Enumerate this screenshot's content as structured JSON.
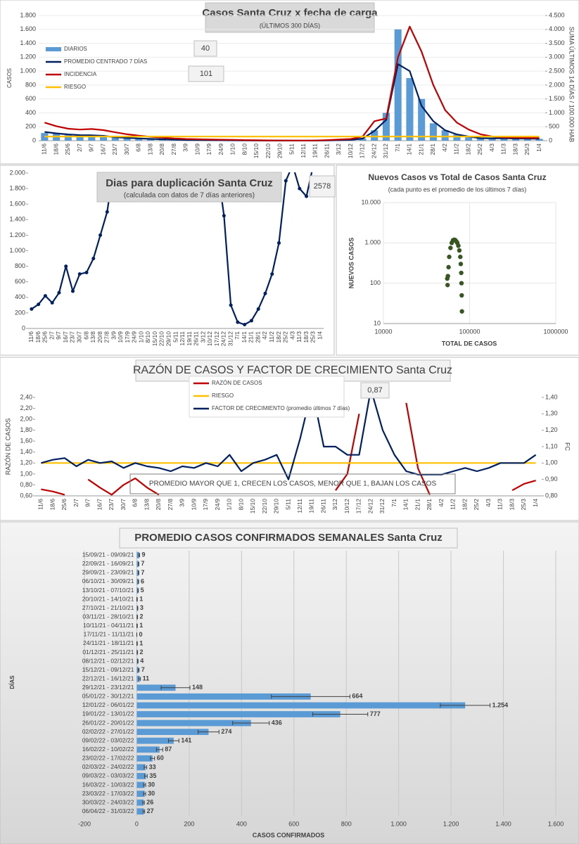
{
  "chart_data": [
    {
      "type": "line",
      "title": "Casos Santa Cruz x fecha de carga",
      "subtitle": "(ÚLTIMOS 300 DÍAS)",
      "y_label": "CASOS",
      "y2_label": "SUMA  ÚLTIMOS 14 DÍAS / 100.000 HAB",
      "categories": [
        "11/6",
        "18/6",
        "25/6",
        "2/7",
        "9/7",
        "16/7",
        "23/7",
        "30/7",
        "6/8",
        "13/8",
        "20/8",
        "27/8",
        "3/9",
        "10/9",
        "17/9",
        "24/9",
        "1/10",
        "8/10",
        "15/10",
        "22/10",
        "29/10",
        "5/11",
        "12/11",
        "19/11",
        "26/11",
        "3/12",
        "10/12",
        "17/12",
        "24/12",
        "31/12",
        "7/1",
        "14/1",
        "21/1",
        "28/1",
        "4/2",
        "11/2",
        "18/2",
        "25/2",
        "4/3",
        "11/3",
        "18/3",
        "25/3",
        "1/4"
      ],
      "series": [
        {
          "name": "DIARIOS",
          "style": "bar",
          "color": "#5b9bd5",
          "values": [
            110,
            100,
            80,
            70,
            80,
            60,
            45,
            40,
            30,
            25,
            20,
            15,
            10,
            8,
            7,
            6,
            5,
            3,
            2,
            1,
            1,
            1,
            0,
            2,
            4,
            7,
            11,
            30,
            150,
            400,
            1600,
            900,
            600,
            250,
            150,
            90,
            60,
            35,
            33,
            35,
            30,
            30,
            26
          ]
        },
        {
          "name": "PROMEDIO CENTRADO 7 DÍAS",
          "color": "#002060",
          "values": [
            125,
            105,
            90,
            80,
            78,
            70,
            50,
            40,
            32,
            25,
            20,
            15,
            10,
            8,
            7,
            6,
            5,
            3,
            2,
            1,
            1,
            1,
            0,
            1,
            3,
            7,
            11,
            30,
            140,
            300,
            1100,
            1000,
            500,
            280,
            150,
            90,
            60,
            35,
            33,
            35,
            30,
            30,
            27
          ]
        },
        {
          "name": "INCIDENCIA",
          "color": "#c00000",
          "axis": "y2",
          "values": [
            650,
            520,
            430,
            400,
            420,
            380,
            300,
            230,
            180,
            140,
            110,
            80,
            60,
            50,
            40,
            35,
            30,
            20,
            15,
            10,
            8,
            6,
            5,
            8,
            20,
            40,
            60,
            150,
            700,
            800,
            3000,
            4100,
            3200,
            2000,
            1100,
            650,
            400,
            230,
            150,
            120,
            110,
            100,
            95
          ]
        },
        {
          "name": "RIESGO",
          "color": "#ffc000",
          "axis": "y2",
          "values": [
            150,
            150,
            150,
            150,
            150,
            150,
            150,
            150,
            150,
            150,
            150,
            150,
            150,
            150,
            150,
            150,
            150,
            150,
            150,
            150,
            150,
            150,
            150,
            150,
            150,
            150,
            150,
            150,
            150,
            150,
            150,
            150,
            150,
            150,
            150,
            150,
            150,
            150,
            150,
            150,
            150,
            150,
            150
          ]
        }
      ],
      "ylim": [
        0,
        1800
      ],
      "yticks": [
        0,
        200,
        400,
        600,
        800,
        {
          "value": 1000,
          "label": "1.000"
        },
        {
          "value": 1200,
          "label": "1.200"
        },
        {
          "value": 1400,
          "label": "1.400"
        },
        {
          "value": 1600,
          "label": "1.600"
        },
        {
          "value": 1800,
          "label": "1.800"
        }
      ],
      "y2lim": [
        0,
        4500
      ],
      "y2ticks": [
        0,
        500,
        {
          "value": 1000,
          "label": "1.000"
        },
        {
          "value": 1500,
          "label": "1.500"
        },
        {
          "value": 2000,
          "label": "2.000"
        },
        {
          "value": 2500,
          "label": "2.500"
        },
        {
          "value": 3000,
          "label": "3.000"
        },
        {
          "value": 3500,
          "label": "3.500"
        },
        {
          "value": 4000,
          "label": "4.000"
        },
        {
          "value": 4500,
          "label": "4.500"
        }
      ],
      "grid": true,
      "legend": "upper left",
      "annotations": [
        "40",
        "101"
      ]
    },
    {
      "type": "line",
      "title": "Dias para duplicación Santa Cruz",
      "subtitle": "(calculada con datos de 7 días anteriores)",
      "categories": [
        "11/6",
        "18/6",
        "25/6",
        "2/7",
        "9/7",
        "16/7",
        "23/7",
        "30/7",
        "6/8",
        "13/8",
        "20/8",
        "27/8",
        "3/9",
        "10/9",
        "17/9",
        "24/9",
        "1/10",
        "8/10",
        "15/10",
        "22/10",
        "29/10",
        "5/11",
        "12/11",
        "19/11",
        "26/11",
        "3/12",
        "10/12",
        "17/12",
        "24/12",
        "31/12",
        "7/1",
        "14/1",
        "21/1",
        "28/1",
        "4/2",
        "11/2",
        "18/2",
        "25/2",
        "4/3",
        "11/3",
        "18/3",
        "25/3",
        "1/4"
      ],
      "series": [
        {
          "color": "#002060",
          "markers": true,
          "values": [
            250,
            310,
            420,
            330,
            460,
            800,
            480,
            700,
            720,
            900,
            1200,
            1500,
            2100,
            null,
            null,
            null,
            null,
            null,
            null,
            null,
            null,
            null,
            null,
            null,
            null,
            null,
            null,
            2100,
            1450,
            300,
            80,
            50,
            100,
            250,
            450,
            700,
            1100,
            1900,
            2100,
            1800,
            1700,
            2100,
            null
          ]
        }
      ],
      "ylim": [
        0,
        2000
      ],
      "yticks": [
        0,
        200,
        400,
        600,
        800,
        {
          "value": 1000,
          "label": "1.000"
        },
        {
          "value": 1200,
          "label": "1.200"
        },
        {
          "value": 1400,
          "label": "1.400"
        },
        {
          "value": 1600,
          "label": "1.600"
        },
        {
          "value": 1800,
          "label": "1.800"
        },
        {
          "value": 2000,
          "label": "2.000"
        }
      ],
      "grid": false,
      "annotations": [
        "2578"
      ]
    },
    {
      "type": "scatter",
      "title": "Nuevos Casos vs Total de Casos Santa Cruz",
      "subtitle": "(cada punto es el promedio de los últimos 7 días)",
      "x_label": "TOTAL DE CASOS",
      "y_label": "NUEVOS CASOS",
      "color": "#375623",
      "x": [
        55000,
        55500,
        56000,
        57000,
        58000,
        60000,
        62000,
        64000,
        66000,
        68000,
        70000,
        72000,
        74000,
        76000,
        78000,
        79000,
        80000,
        80500,
        81000,
        81500
      ],
      "values": [
        130,
        90,
        150,
        250,
        450,
        750,
        1000,
        1150,
        1200,
        1180,
        1100,
        1000,
        850,
        650,
        450,
        300,
        180,
        100,
        50,
        20
      ],
      "xlim": [
        10000,
        1000000
      ],
      "xticks": [
        10000,
        100000,
        1000000
      ],
      "log_x": true,
      "ylim": [
        10,
        10000
      ],
      "yticks": [
        10,
        100,
        {
          "value": 1000,
          "label": "1.000"
        },
        {
          "value": 10000,
          "label": "10.000"
        }
      ],
      "log_y": true,
      "grid": true
    },
    {
      "type": "line",
      "title": "RAZÓN DE CASOS Y FACTOR DE CRECIMIENTO Santa Cruz",
      "y_label": "RAZÓN DE CASOS",
      "y2_label": "FC",
      "categories": [
        "11/6",
        "18/6",
        "25/6",
        "2/7",
        "9/7",
        "16/7",
        "23/7",
        "30/7",
        "6/8",
        "13/8",
        "20/8",
        "27/8",
        "3/9",
        "10/9",
        "17/9",
        "24/9",
        "1/10",
        "8/10",
        "15/10",
        "22/10",
        "29/10",
        "5/11",
        "12/11",
        "19/11",
        "26/11",
        "3/12",
        "10/12",
        "17/12",
        "24/12",
        "31/12",
        "7/1",
        "14/1",
        "21/1",
        "28/1",
        "4/2",
        "11/2",
        "18/2",
        "25/2",
        "4/3",
        "11/3",
        "18/3",
        "25/3",
        "1/4"
      ],
      "series": [
        {
          "name": "RAZÓN DE CASOS",
          "color": "#c00000",
          "values": [
            0.72,
            0.68,
            0.62,
            null,
            0.9,
            0.75,
            0.62,
            0.8,
            0.92,
            0.75,
            0.62,
            null,
            null,
            null,
            null,
            null,
            null,
            null,
            null,
            null,
            null,
            null,
            null,
            null,
            null,
            0.7,
            1.0,
            2.1,
            null,
            null,
            null,
            2.3,
            1.1,
            0.62,
            null,
            null,
            null,
            null,
            null,
            null,
            0.7,
            0.82,
            0.88
          ]
        },
        {
          "name": "RIESGO",
          "color": "#ffc000",
          "axis": "y2",
          "values": [
            1,
            1,
            1,
            1,
            1,
            1,
            1,
            1,
            1,
            1,
            1,
            1,
            1,
            1,
            1,
            1,
            1,
            1,
            1,
            1,
            1,
            1,
            1,
            1,
            1,
            1,
            1,
            1,
            1,
            1,
            1,
            1,
            1,
            1,
            1,
            1,
            1,
            1,
            1,
            1,
            1,
            1,
            1
          ]
        },
        {
          "name": "FACTOR DE CRECIMIENTO (promedio últimos 7 días)",
          "color": "#002060",
          "axis": "y2",
          "values": [
            1.0,
            1.02,
            1.03,
            0.98,
            1.02,
            1.0,
            1.01,
            0.97,
            1.0,
            0.98,
            0.97,
            0.95,
            0.98,
            0.97,
            1.0,
            0.98,
            1.05,
            0.95,
            1.0,
            1.02,
            1.05,
            0.9,
            1.15,
            1.45,
            1.1,
            1.1,
            1.05,
            1.05,
            1.45,
            1.2,
            1.05,
            0.95,
            0.93,
            0.93,
            0.93,
            0.95,
            0.97,
            0.95,
            0.97,
            1.0,
            1.0,
            1.0,
            1.05
          ]
        }
      ],
      "ylim": [
        0.6,
        2.4
      ],
      "yticks": [
        {
          "value": 0.6,
          "label": "0,60"
        },
        {
          "value": 0.8,
          "label": "0,80"
        },
        {
          "value": 1.0,
          "label": "1,00"
        },
        {
          "value": 1.2,
          "label": "1,20"
        },
        {
          "value": 1.4,
          "label": "1,40"
        },
        {
          "value": 1.6,
          "label": "1,60"
        },
        {
          "value": 1.8,
          "label": "1,80"
        },
        {
          "value": 2.0,
          "label": "2,00"
        },
        {
          "value": 2.2,
          "label": "2,20"
        },
        {
          "value": 2.4,
          "label": "2,40"
        }
      ],
      "y2lim": [
        0.8,
        1.4
      ],
      "y2ticks": [
        {
          "value": 0.8,
          "label": "0,80"
        },
        {
          "value": 0.9,
          "label": "0,90"
        },
        {
          "value": 1.0,
          "label": "1,00"
        },
        {
          "value": 1.1,
          "label": "1,10"
        },
        {
          "value": 1.2,
          "label": "1,20"
        },
        {
          "value": 1.3,
          "label": "1,30"
        },
        {
          "value": 1.4,
          "label": "1,40"
        }
      ],
      "grid": false,
      "legend": "upper center",
      "annotations": [
        "0,87",
        "PROMEDIO MAYOR QUE 1, CRECEN LOS CASOS, MENOR QUE 1, BAJAN LOS CASOS"
      ]
    },
    {
      "type": "hbar",
      "title": "PROMEDIO CASOS CONFIRMADOS SEMANALES Santa Cruz",
      "x_label": "CASOS CONFIRMADOS",
      "y_label": "DÍAS",
      "color": "#5b9bd5",
      "categories": [
        "15/09/21 - 09/09/21",
        "22/09/21 - 16/09/21",
        "29/09/21 - 23/09/21",
        "06/10/21 - 30/09/21",
        "13/10/21 - 07/10/21",
        "20/10/21 - 14/10/21",
        "27/10/21 - 21/10/21",
        "03/11/21 - 28/10/21",
        "10/11/21 - 04/11/21",
        "17/11/21 - 11/11/21",
        "24/11/21 - 18/11/21",
        "01/12/21 - 25/11/21",
        "08/12/21 - 02/12/21",
        "15/12/21 - 09/12/21",
        "22/12/21 - 16/12/21",
        "29/12/21 - 23/12/21",
        "05/01/22 - 30/12/21",
        "12/01/22 - 06/01/22",
        "19/01/22 - 13/01/22",
        "26/01/22 - 20/01/22",
        "02/02/22 - 27/01/22",
        "09/02/22 - 03/02/22",
        "16/02/22 - 10/02/22",
        "23/02/22 - 17/02/22",
        "02/03/22 - 24/02/22",
        "09/03/22 - 03/03/22",
        "16/03/22 - 10/03/22",
        "23/03/22 - 17/03/22",
        "30/03/22 - 24/03/22",
        "06/04/22 - 31/03/22"
      ],
      "values": [
        9,
        7,
        7,
        6,
        5,
        1,
        3,
        2,
        1,
        0,
        1,
        2,
        4,
        7,
        11,
        148,
        664,
        1254,
        777,
        436,
        274,
        141,
        87,
        60,
        33,
        35,
        30,
        30,
        26,
        27
      ],
      "value_labels": [
        "9",
        "7",
        "7",
        "6",
        "5",
        "1",
        "3",
        "2",
        "1",
        "0",
        "1",
        "2",
        "4",
        "7",
        "11",
        "148",
        "664",
        "1.254",
        "777",
        "436",
        "274",
        "141",
        "87",
        "60",
        "33",
        "35",
        "30",
        "30",
        "26",
        "27"
      ],
      "errors": [
        2,
        1,
        1,
        1,
        1,
        1,
        1,
        1,
        1,
        0,
        1,
        1,
        1,
        2,
        3,
        55,
        150,
        95,
        105,
        70,
        40,
        20,
        12,
        8,
        5,
        5,
        4,
        4,
        3,
        3
      ],
      "xlim": [
        -200,
        1600
      ],
      "xticks": [
        -200,
        0,
        200,
        400,
        600,
        800,
        {
          "value": 1000,
          "label": "1.000"
        },
        {
          "value": 1200,
          "label": "1.200"
        },
        {
          "value": 1400,
          "label": "1.400"
        },
        {
          "value": 1600,
          "label": "1.600"
        }
      ],
      "grid": true
    }
  ]
}
